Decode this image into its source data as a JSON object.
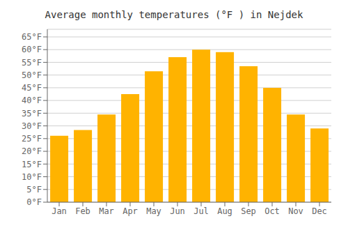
{
  "chart_data": {
    "type": "bar",
    "title": "Average monthly temperatures (°F ) in Nejdek",
    "categories": [
      "Jan",
      "Feb",
      "Mar",
      "Apr",
      "May",
      "Jun",
      "Jul",
      "Aug",
      "Sep",
      "Oct",
      "Nov",
      "Dec"
    ],
    "values": [
      26.1,
      28.4,
      34.5,
      42.5,
      51.5,
      57.0,
      60.0,
      59.0,
      53.5,
      45.0,
      34.5,
      29.0
    ],
    "color": "#FFB300",
    "ylim": [
      0,
      68
    ],
    "yticks": [
      {
        "value": 0,
        "label": "0°F"
      },
      {
        "value": 5,
        "label": "5°F"
      },
      {
        "value": 10,
        "label": "10°F"
      },
      {
        "value": 15,
        "label": "15°F"
      },
      {
        "value": 20,
        "label": "20°F"
      },
      {
        "value": 25,
        "label": "25°F"
      },
      {
        "value": 30,
        "label": "30°F"
      },
      {
        "value": 35,
        "label": "35°F"
      },
      {
        "value": 40,
        "label": "40°F"
      },
      {
        "value": 45,
        "label": "45°F"
      },
      {
        "value": 50,
        "label": "50°F"
      },
      {
        "value": 55,
        "label": "55°F"
      },
      {
        "value": 60,
        "label": "60°F"
      },
      {
        "value": 65,
        "label": "65°F"
      }
    ],
    "grid": true
  }
}
